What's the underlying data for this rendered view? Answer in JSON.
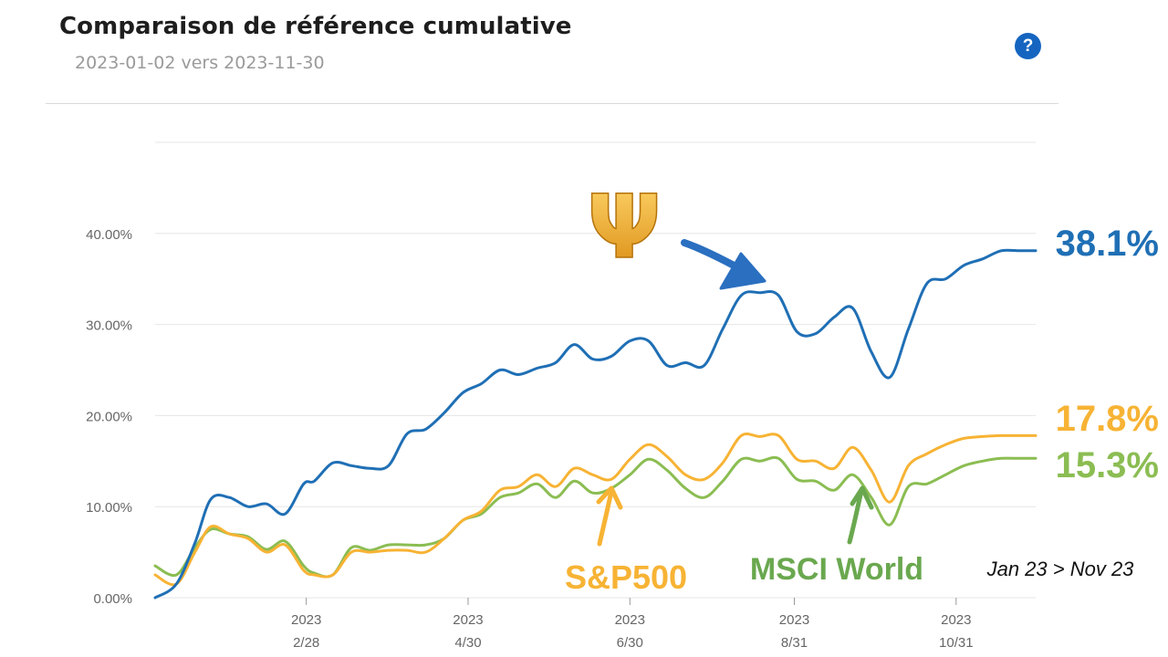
{
  "header": {
    "title": "Comparaison de référence cumulative",
    "subtitle": "2023-01-02 vers 2023-11-30",
    "help_label": "?"
  },
  "colors": {
    "portfolio": "#1f6fb5",
    "sp500": "#f7b334",
    "msci": "#8bbd52",
    "grid": "#e6e6e6",
    "axis_text": "#666666"
  },
  "chart_data": {
    "type": "line",
    "title": "Comparaison de référence cumulative",
    "xlabel": "",
    "ylabel": "",
    "ylim": [
      0,
      50
    ],
    "yticks": [
      0,
      10,
      20,
      30,
      40
    ],
    "ytick_labels": [
      "0.00%",
      "10.00%",
      "20.00%",
      "30.00%",
      "40.00%"
    ],
    "xlim": [
      "2023-01-02",
      "2023-11-30"
    ],
    "xticks": [
      "2023-02-28",
      "2023-04-30",
      "2023-06-30",
      "2023-08-31",
      "2023-10-31"
    ],
    "xtick_labels": [
      [
        "2023",
        "2/28"
      ],
      [
        "2023",
        "4/30"
      ],
      [
        "2023",
        "6/30"
      ],
      [
        "2023",
        "8/31"
      ],
      [
        "2023",
        "10/31"
      ]
    ],
    "grid": true,
    "x": [
      "2023-01-02",
      "2023-01-10",
      "2023-01-17",
      "2023-01-23",
      "2023-01-30",
      "2023-02-06",
      "2023-02-13",
      "2023-02-20",
      "2023-02-27",
      "2023-03-03",
      "2023-03-10",
      "2023-03-17",
      "2023-03-24",
      "2023-03-31",
      "2023-04-07",
      "2023-04-14",
      "2023-04-21",
      "2023-04-28",
      "2023-05-05",
      "2023-05-12",
      "2023-05-19",
      "2023-05-26",
      "2023-06-02",
      "2023-06-09",
      "2023-06-16",
      "2023-06-23",
      "2023-06-30",
      "2023-07-07",
      "2023-07-14",
      "2023-07-21",
      "2023-07-28",
      "2023-08-04",
      "2023-08-11",
      "2023-08-18",
      "2023-08-25",
      "2023-09-01",
      "2023-09-08",
      "2023-09-15",
      "2023-09-22",
      "2023-09-29",
      "2023-10-06",
      "2023-10-13",
      "2023-10-20",
      "2023-10-27",
      "2023-11-03",
      "2023-11-10",
      "2023-11-17",
      "2023-11-24",
      "2023-11-30"
    ],
    "series": [
      {
        "name": "",
        "values": [
          0.0,
          1.5,
          6.0,
          10.8,
          11.0,
          10.0,
          10.3,
          9.2,
          12.5,
          12.8,
          14.8,
          14.5,
          14.2,
          14.5,
          18.0,
          18.5,
          20.3,
          22.5,
          23.5,
          25.0,
          24.5,
          25.2,
          25.8,
          27.8,
          26.2,
          26.5,
          28.2,
          28.2,
          25.5,
          25.8,
          25.5,
          29.5,
          33.2,
          33.5,
          33.2,
          29.2,
          29.0,
          30.8,
          31.8,
          27.0,
          24.2,
          29.5,
          34.5,
          35.0,
          36.5,
          37.2,
          38.1,
          38.1,
          38.1
        ]
      },
      {
        "name": "S&P500",
        "values": [
          2.5,
          1.5,
          5.0,
          7.8,
          7.0,
          6.5,
          5.0,
          5.8,
          3.0,
          2.5,
          2.5,
          5.0,
          5.0,
          5.2,
          5.2,
          5.0,
          6.5,
          8.5,
          9.5,
          11.8,
          12.2,
          13.5,
          12.2,
          14.2,
          13.5,
          13.0,
          15.2,
          16.8,
          15.5,
          13.5,
          13.0,
          14.8,
          17.8,
          17.7,
          17.8,
          15.2,
          15.0,
          14.2,
          16.5,
          14.0,
          10.5,
          14.5,
          15.8,
          16.8,
          17.5,
          17.7,
          17.8,
          17.8,
          17.8
        ]
      },
      {
        "name": "MSCI World",
        "values": [
          3.5,
          2.5,
          5.5,
          7.5,
          7.0,
          6.7,
          5.3,
          6.2,
          3.5,
          2.7,
          2.5,
          5.5,
          5.2,
          5.8,
          5.8,
          5.8,
          6.5,
          8.5,
          9.2,
          11.0,
          11.5,
          12.5,
          11.0,
          12.8,
          11.5,
          12.0,
          13.5,
          15.2,
          14.0,
          12.0,
          11.0,
          12.8,
          15.2,
          15.0,
          15.3,
          13.0,
          12.8,
          11.8,
          13.5,
          11.0,
          8.0,
          12.2,
          12.5,
          13.5,
          14.5,
          15.0,
          15.3,
          15.3,
          15.3
        ]
      }
    ],
    "annotations": {
      "portfolio_value": "38.1%",
      "sp500_value": "17.8%",
      "msci_value": "15.3%",
      "sp500_label": "S&P500",
      "msci_label": "MSCI World",
      "period_label": "Jan 23 > Nov 23",
      "trident_symbol": "Ψ"
    }
  }
}
